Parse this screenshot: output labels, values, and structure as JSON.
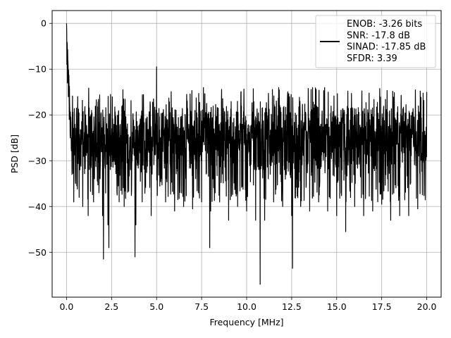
{
  "chart_data": {
    "type": "line",
    "title": "",
    "xlabel": "Frequency [MHz]",
    "ylabel": "PSD [dB]",
    "xlim": [
      -0.8,
      20.8
    ],
    "ylim": [
      -59.8,
      2.8
    ],
    "xticks": [
      0.0,
      2.5,
      5.0,
      7.5,
      10.0,
      12.5,
      15.0,
      17.5,
      20.0
    ],
    "xtick_labels": [
      "0.0",
      "2.5",
      "5.0",
      "7.5",
      "10.0",
      "12.5",
      "15.0",
      "17.5",
      "20.0"
    ],
    "yticks": [
      0,
      -10,
      -20,
      -30,
      -40,
      -50
    ],
    "ytick_labels": [
      "0",
      "−10",
      "−20",
      "−30",
      "−40",
      "−50"
    ],
    "grid": true,
    "legend": {
      "placement": "top-right",
      "lines": [
        "ENOB: -3.26 bits",
        "SNR: -17.8 dB",
        "SINAD: -17.85 dB",
        "SFDR: 3.39"
      ]
    },
    "series": [
      {
        "color": "#000000",
        "noise_floor_db": [
          -31,
          -14
        ],
        "x": [
          0.0,
          0.02,
          0.05,
          0.1,
          0.15,
          0.2,
          0.3,
          0.4,
          0.5,
          0.7,
          0.9,
          1.2,
          1.5,
          1.8,
          2.0,
          2.05,
          2.3,
          2.35,
          2.8,
          3.2,
          3.8,
          3.85,
          4.2,
          4.7,
          5.0,
          5.5,
          6.0,
          6.5,
          7.0,
          7.5,
          7.95,
          8.0,
          8.5,
          9.0,
          9.5,
          10.0,
          10.5,
          10.75,
          11.0,
          11.5,
          12.0,
          12.5,
          12.55,
          13.0,
          13.5,
          14.0,
          14.5,
          15.0,
          15.5,
          16.0,
          16.5,
          17.0,
          17.5,
          18.0,
          18.5,
          19.0,
          19.5,
          20.0
        ],
        "y": [
          0.0,
          -9.0,
          -13.0,
          -16.0,
          -21.0,
          -25.0,
          -33.0,
          -39.0,
          -35.0,
          -38.0,
          -40.0,
          -42.0,
          -39.0,
          -37.0,
          -42.0,
          -51.5,
          -44.0,
          -49.0,
          -37.0,
          -40.0,
          -51.0,
          -44.0,
          -39.0,
          -42.0,
          -9.5,
          -39.0,
          -41.0,
          -40.0,
          -40.5,
          -39.0,
          -49.0,
          -41.0,
          -39.0,
          -43.0,
          -40.0,
          -41.0,
          -43.0,
          -57.0,
          -43.0,
          -39.0,
          -40.0,
          -42.0,
          -53.5,
          -40.0,
          -41.0,
          -39.0,
          -41.0,
          -42.0,
          -45.5,
          -40.0,
          -42.0,
          -41.0,
          -39.5,
          -43.0,
          -42.0,
          -42.0,
          -40.5,
          -15.0
        ]
      }
    ]
  }
}
